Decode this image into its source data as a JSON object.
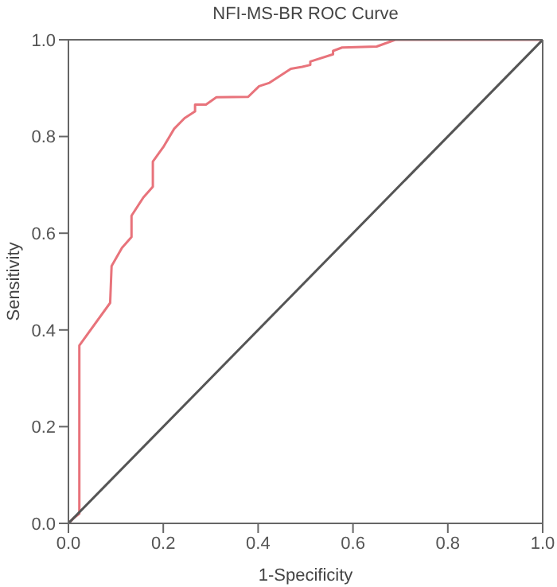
{
  "chart_data": {
    "type": "line",
    "title": "NFI-MS-BR ROC Curve",
    "xlabel": "1-Specificity",
    "ylabel": "Sensitivity",
    "xlim": [
      0,
      1
    ],
    "ylim": [
      0,
      1
    ],
    "xticks": [
      {
        "value": 0,
        "label": "0.0"
      },
      0.2,
      0.4,
      0.6,
      0.8,
      {
        "value": 1,
        "label": "1.0"
      }
    ],
    "yticks": [
      {
        "value": 0,
        "label": "0.0"
      },
      0.2,
      0.4,
      0.6,
      0.8,
      {
        "value": 1,
        "label": "1.0"
      }
    ],
    "marker": "none",
    "series": [
      {
        "color": "#e8737b",
        "x": [
          0,
          0.01,
          0.023,
          0.023,
          0.088,
          0.091,
          0.113,
          0.133,
          0.133,
          0.158,
          0.178,
          0.178,
          0.2,
          0.223,
          0.245,
          0.267,
          0.267,
          0.29,
          0.312,
          0.379,
          0.402,
          0.424,
          0.469,
          0.493,
          0.51,
          0.51,
          0.558,
          0.558,
          0.577,
          0.65,
          0.689,
          1
        ],
        "values": [
          0,
          0.01,
          0.02,
          0.368,
          0.456,
          0.532,
          0.57,
          0.592,
          0.636,
          0.674,
          0.696,
          0.748,
          0.778,
          0.816,
          0.838,
          0.852,
          0.866,
          0.866,
          0.881,
          0.882,
          0.904,
          0.911,
          0.94,
          0.944,
          0.948,
          0.955,
          0.97,
          0.977,
          0.984,
          0.986,
          1,
          1
        ]
      },
      {
        "color": "#555555",
        "x": [
          0,
          1
        ],
        "values": [
          0,
          1
        ]
      }
    ]
  }
}
